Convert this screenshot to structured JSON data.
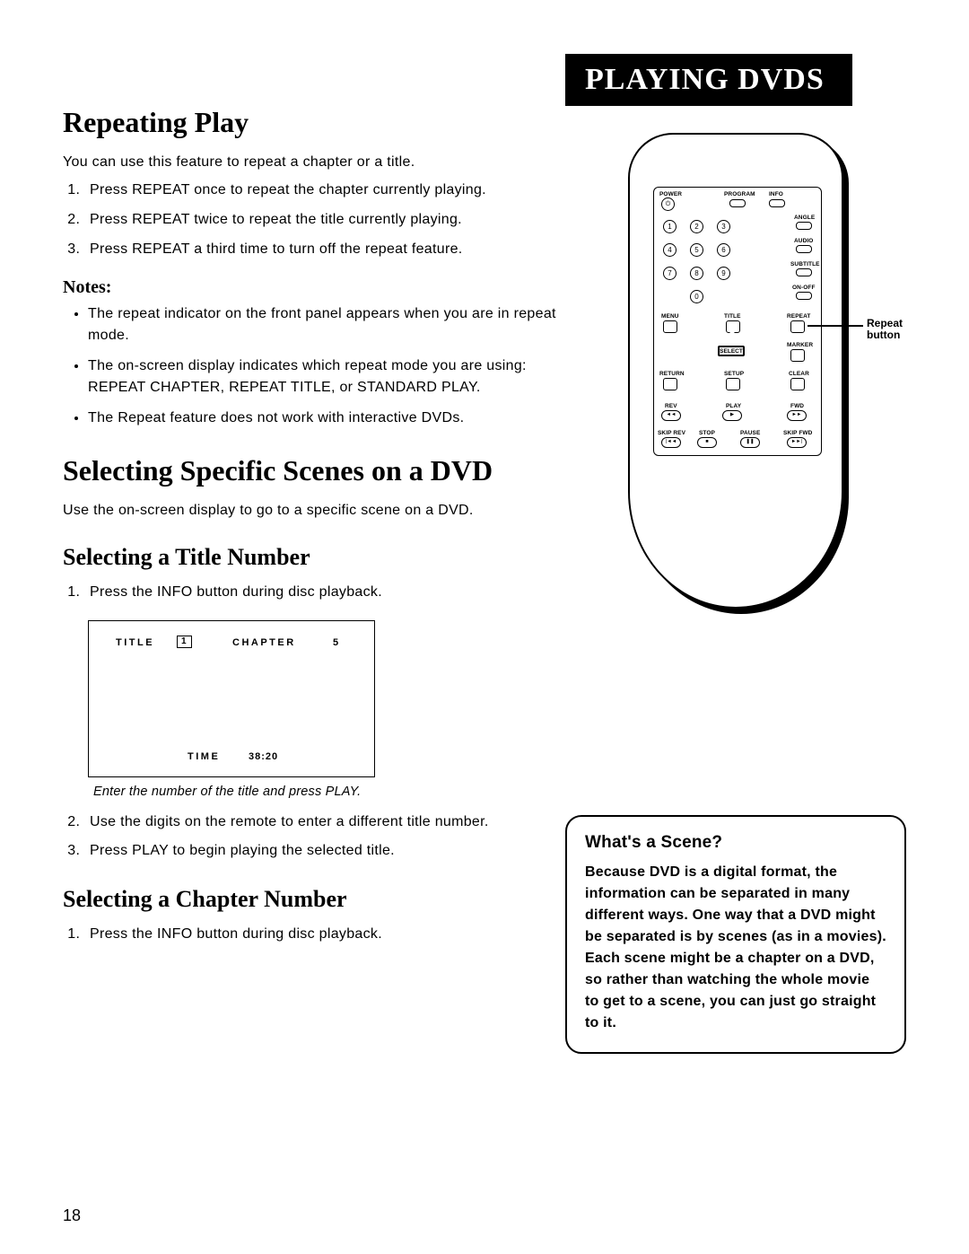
{
  "banner": "PLAYING DVDS",
  "section1": {
    "heading": "Repeating Play",
    "intro": "You can use this feature to repeat a chapter or a title.",
    "steps": [
      "Press REPEAT once to repeat the chapter currently playing.",
      "Press REPEAT twice to repeat the title currently playing.",
      "Press REPEAT a third time to turn off the repeat feature."
    ],
    "notes_heading": "Notes:",
    "notes": [
      "The repeat indicator on the front panel appears when you are in repeat mode.",
      "The on-screen display indicates which repeat mode you are using: REPEAT CHAPTER, REPEAT TITLE, or STANDARD PLAY.",
      "The Repeat feature does not work with interactive DVDs."
    ]
  },
  "section2": {
    "heading": "Selecting Specific Scenes on a DVD",
    "intro": "Use the on-screen display to go to a specific scene on a DVD."
  },
  "sub1": {
    "heading": "Selecting a Title Number",
    "step1": "Press the INFO button during disc playback.",
    "osd": {
      "title_label": "TITLE",
      "title_value": "1",
      "chapter_label": "CHAPTER",
      "chapter_value": "5",
      "time_label": "TIME",
      "time_value": "38:20"
    },
    "caption": "Enter the number of the title and press PLAY.",
    "step2": "Use the digits on the remote to enter a different title number.",
    "step3": "Press PLAY to begin playing the selected title."
  },
  "sub2": {
    "heading": "Selecting a Chapter Number",
    "step1": "Press the INFO button during disc playback."
  },
  "page_number": "18",
  "callout": {
    "heading": "What's a Scene?",
    "body": "Because DVD is a digital format, the information can be separated in many different ways. One way that a DVD might be separated is by scenes (as in a movies). Each scene might be a chapter on a DVD, so rather than watching the whole movie to get to a scene, you can just go straight to it."
  },
  "remote": {
    "labels": {
      "power": "POWER",
      "program": "PROGRAM",
      "info": "INFO",
      "angle": "ANGLE",
      "audio": "AUDIO",
      "subtitle": "SUBTITLE",
      "onoff": "ON-OFF",
      "menu": "MENU",
      "title": "TITLE",
      "repeat": "REPEAT",
      "marker": "MARKER",
      "return": "RETURN",
      "setup": "SETUP",
      "clear": "CLEAR",
      "select": "SELECT",
      "rev": "REV",
      "play": "PLAY",
      "fwd": "FWD",
      "skiprev": "SKIP REV",
      "stop": "STOP",
      "pause": "PAUSE",
      "skipfwd": "SKIP FWD"
    },
    "leader_label": "Repeat button"
  }
}
